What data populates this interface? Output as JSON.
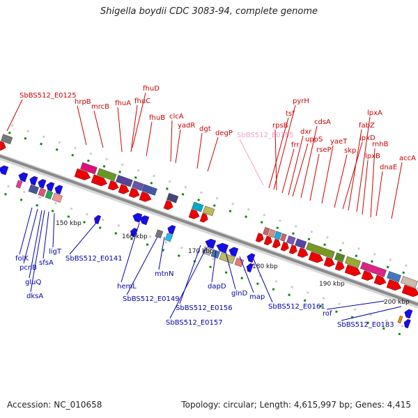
{
  "title": "Shigella boydii CDC 3083-94, complete genome",
  "footer": {
    "accession": "Accession: NC_010658",
    "topology": "Topology: circular; Length: 4,615,997 bp; Genes: 4,415"
  },
  "colors": {
    "forward_label": "#cc0000",
    "reverse_label": "#0000aa",
    "pseudo_label": "#f0a0c8",
    "forward_arrow": "#ee0000",
    "reverse_arrow": "#1010ee",
    "backbone": "#8a8a8a"
  },
  "ticks": [
    "150 kbp",
    "160 kbp",
    "170 kbp",
    "180 kbp",
    "190 kbp",
    "200 kbp"
  ],
  "forward_genes": [
    "SbBS512_E0125",
    "hrpB",
    "mrcB",
    "fhuA",
    "fhuC",
    "fhuD",
    "fhuB",
    "clcA",
    "yadR",
    "dgt",
    "degP",
    "SbBS512_E0155",
    "tsf",
    "pyrH",
    "rpsB",
    "frr",
    "dxr",
    "uppS",
    "cdsA",
    "rseP",
    "yaeT",
    "skp",
    "lpxD",
    "fabZ",
    "lpxA",
    "lpxB",
    "rnhB",
    "dnaE",
    "accA"
  ],
  "reverse_genes": [
    "folK",
    "pcnB",
    "gluQ",
    "dksA",
    "sfsA",
    "ligT",
    "SbBS512_E0141",
    "hemL",
    "SbBS512_E0149",
    "mtnN",
    "SbBS512_E0156",
    "SbBS512_E0157",
    "dapD",
    "glnD",
    "map",
    "SbBS512_E0161",
    "rof",
    "SbBS512_E0183"
  ]
}
